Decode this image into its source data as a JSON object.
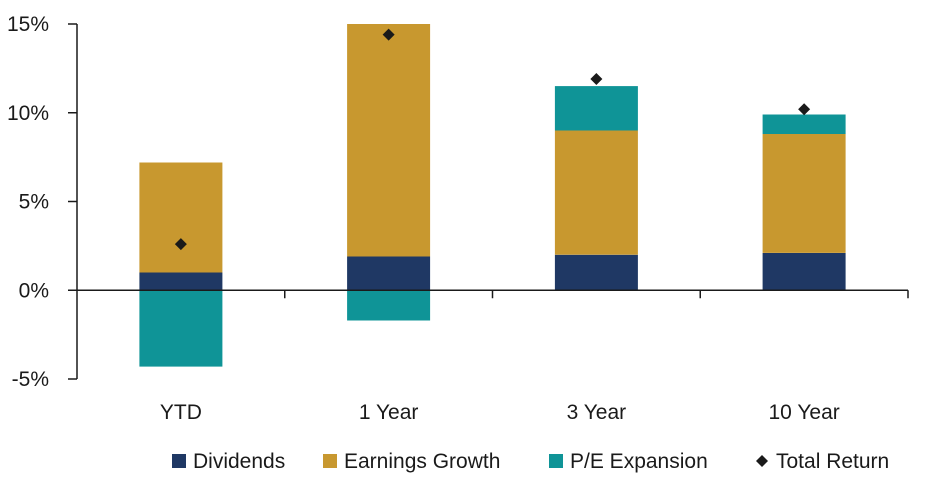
{
  "chart_data": {
    "type": "bar",
    "stacked": true,
    "categories": [
      "YTD",
      "1 Year",
      "3 Year",
      "10 Year"
    ],
    "series": [
      {
        "name": "Dividends",
        "color": "#1f3864",
        "values": [
          1.0,
          1.9,
          2.0,
          2.1
        ]
      },
      {
        "name": "Earnings Growth",
        "color": "#c8982f",
        "values": [
          6.2,
          13.1,
          7.0,
          6.7
        ]
      },
      {
        "name": "P/E Expansion",
        "color": "#0f9497",
        "values": [
          -4.3,
          -1.7,
          2.5,
          1.1
        ]
      }
    ],
    "markers": [
      {
        "name": "Total Return",
        "color": "#1a1a1a",
        "values": [
          2.6,
          14.4,
          11.9,
          10.2
        ]
      }
    ],
    "ylim": [
      -5,
      15
    ],
    "yticks": [
      -5,
      0,
      5,
      10,
      15
    ],
    "ytick_labels": [
      "-5%",
      "0%",
      "5%",
      "10%",
      "15%"
    ],
    "legend_position": "bottom",
    "grid": false
  }
}
